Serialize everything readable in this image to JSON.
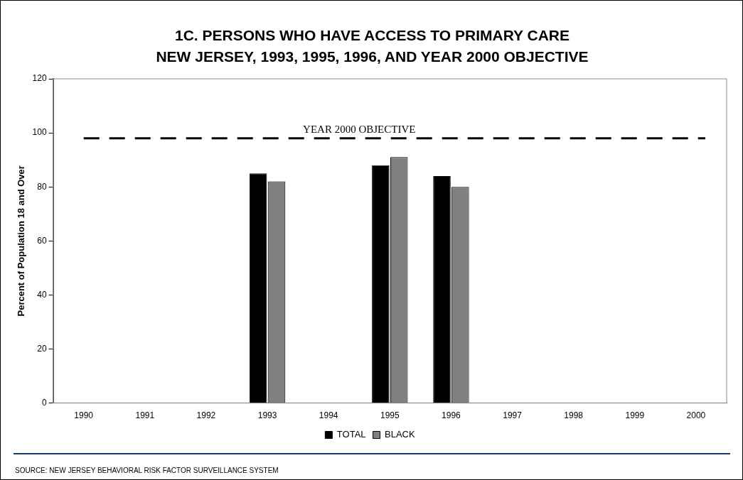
{
  "chart_data": {
    "type": "bar",
    "title": "1C. PERSONS WHO HAVE ACCESS TO PRIMARY CARE",
    "subtitle": "NEW JERSEY, 1993, 1995, 1996, AND YEAR 2000 OBJECTIVE",
    "ylabel": "Percent of Population 18 and Over",
    "categories": [
      "1990",
      "1991",
      "1992",
      "1993",
      "1994",
      "1995",
      "1996",
      "1997",
      "1998",
      "1999",
      "2000"
    ],
    "series": [
      {
        "name": "TOTAL",
        "color": "#000000",
        "values": [
          null,
          null,
          null,
          85,
          null,
          88,
          84,
          null,
          null,
          null,
          null
        ]
      },
      {
        "name": "BLACK",
        "color": "#808080",
        "values": [
          null,
          null,
          null,
          82,
          null,
          91,
          80,
          null,
          null,
          null,
          null
        ]
      }
    ],
    "ylim": [
      0,
      120
    ],
    "yticks": [
      0,
      20,
      40,
      60,
      80,
      100,
      120
    ],
    "grid": false,
    "legend": "bottom",
    "ref_lines": [
      {
        "axis": "y",
        "value": 98,
        "label": "YEAR 2000 OBJECTIVE",
        "color": "#000000",
        "line_style": "dashed"
      }
    ],
    "annotations": [
      "SOURCE: NEW JERSEY BEHAVIORAL RISK FACTOR SURVEILLANCE SYSTEM"
    ]
  }
}
